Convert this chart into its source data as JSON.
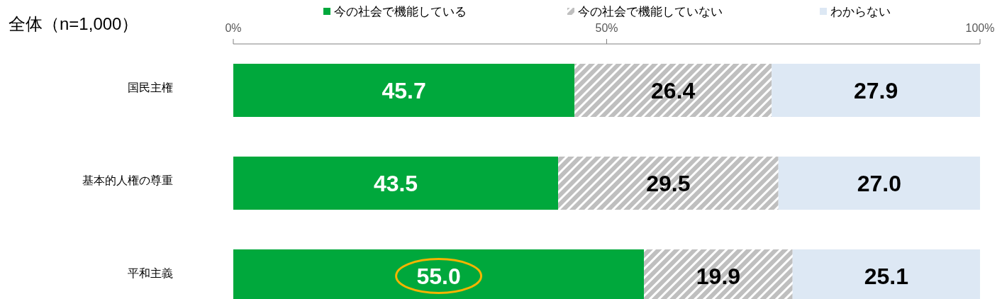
{
  "chart_data": {
    "type": "bar",
    "orientation": "horizontal",
    "stacked": true,
    "title": "全体（n=1,000）",
    "categories": [
      "国民主権",
      "基本的人権の尊重",
      "平和主義"
    ],
    "series": [
      {
        "name": "今の社会で機能している",
        "color": "#00a83c",
        "values": [
          45.7,
          43.5,
          55.0
        ],
        "value_labels": [
          "45.7",
          "43.5",
          "55.0"
        ]
      },
      {
        "name": "今の社会で機能していない",
        "color": "#bfbfbf",
        "values": [
          26.4,
          29.5,
          19.9
        ],
        "value_labels": [
          "26.4",
          "29.5",
          "19.9"
        ]
      },
      {
        "name": "わからない",
        "color": "#dde8f4",
        "values": [
          27.9,
          27.0,
          25.1
        ],
        "value_labels": [
          "27.9",
          "27.0",
          "25.1"
        ]
      }
    ],
    "xlim": [
      0,
      100
    ],
    "xticks": [
      {
        "value": 0,
        "label": "0%"
      },
      {
        "value": 50,
        "label": "50%"
      },
      {
        "value": 100,
        "label": "100%"
      }
    ],
    "legend": "top"
  }
}
